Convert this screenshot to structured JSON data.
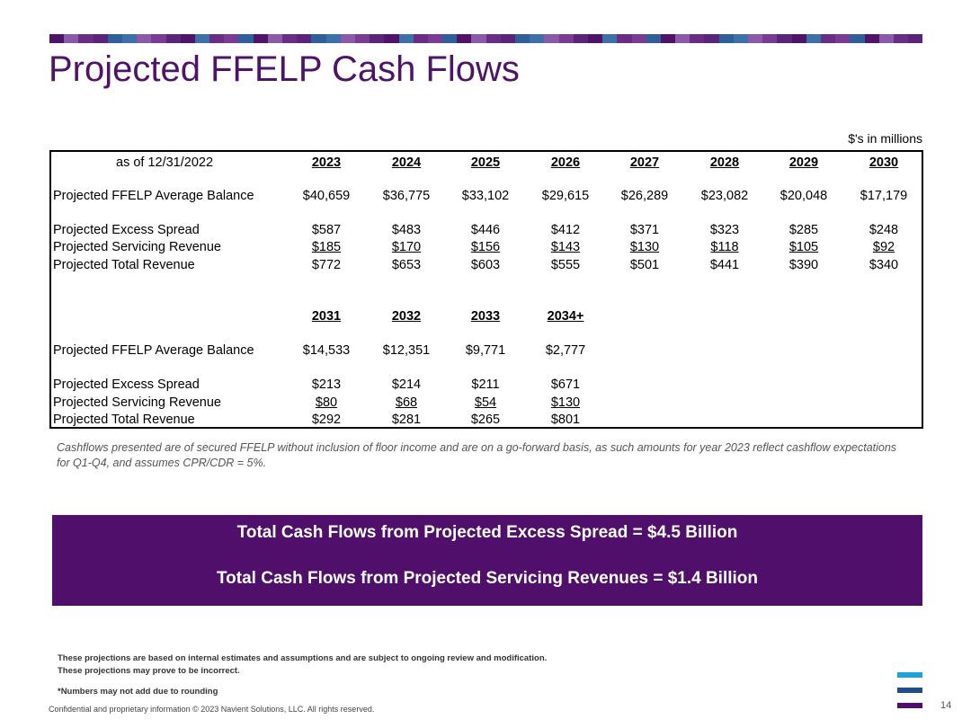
{
  "header": {
    "title": "Projected FFELP Cash Flows",
    "stripe_colors": [
      "#4f1468",
      "#7a3b94",
      "#3d6fa8",
      "#5a2478",
      "#8a5aa6",
      "#2f5f9a",
      "#6a2d86"
    ]
  },
  "table": {
    "units": "$'s in millions",
    "as_of": "as of 12/31/2022",
    "sections": [
      {
        "years": [
          "2023",
          "2024",
          "2025",
          "2026",
          "2027",
          "2028",
          "2029",
          "2030"
        ],
        "rows": [
          {
            "label": "Projected FFELP Average Balance",
            "values": [
              "$40,659",
              "$36,775",
              "$33,102",
              "$29,615",
              "$26,289",
              "$23,082",
              "$20,048",
              "$17,179"
            ],
            "underline": false
          },
          {
            "label": "Projected Excess Spread",
            "values": [
              "$587",
              "$483",
              "$446",
              "$412",
              "$371",
              "$323",
              "$285",
              "$248"
            ],
            "underline": false
          },
          {
            "label": "Projected Servicing Revenue",
            "values": [
              "$185",
              "$170",
              "$156",
              "$143",
              "$130",
              "$118",
              "$105",
              "$92"
            ],
            "underline": true
          },
          {
            "label": "Projected Total Revenue",
            "values": [
              "$772",
              "$653",
              "$603",
              "$555",
              "$501",
              "$441",
              "$390",
              "$340"
            ],
            "underline": false
          }
        ]
      },
      {
        "years": [
          "2031",
          "2032",
          "2033",
          "2034+"
        ],
        "rows": [
          {
            "label": "Projected FFELP Average Balance",
            "values": [
              "$14,533",
              "$12,351",
              "$9,771",
              "$2,777"
            ],
            "underline": false
          },
          {
            "label": "Projected Excess Spread",
            "values": [
              "$213",
              "$214",
              "$211",
              "$671"
            ],
            "underline": false
          },
          {
            "label": "Projected Servicing Revenue",
            "values": [
              "$80",
              "$68",
              "$54",
              "$130"
            ],
            "underline": true
          },
          {
            "label": "Projected Total Revenue",
            "values": [
              "$292",
              "$281",
              "$265",
              "$801"
            ],
            "underline": false
          }
        ]
      }
    ]
  },
  "note": "Cashflows presented are of secured FFELP without inclusion of floor income and are on a go-forward basis, as such amounts for year 2023 reflect cashflow expectations for Q1-Q4, and assumes CPR/CDR = 5%.",
  "banner": {
    "line1": "Total Cash Flows from Projected Excess Spread = $4.5 Billion",
    "line2": "Total Cash Flows from Projected Servicing Revenues = $1.4 Billion",
    "color": "#4f0f6a"
  },
  "disclaimer": {
    "line1": "These projections are based on internal estimates and assumptions and are subject to ongoing review and modification.",
    "line2": "These projections may prove to be incorrect.",
    "rounding": "*Numbers may not add due to rounding"
  },
  "footer": {
    "text": "Confidential and proprietary information  © 2023 Navient Solutions, LLC. All rights reserved.",
    "page_number": "14"
  },
  "logo": {
    "icon": "navient-bars-icon",
    "colors": [
      "#1fa3d6",
      "#1e4f8c",
      "#4f0f6a"
    ]
  }
}
